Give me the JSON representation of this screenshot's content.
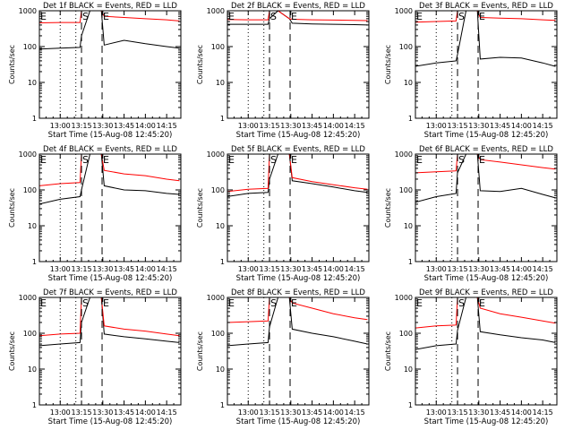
{
  "chart_data": [
    {
      "type": "line",
      "title": "Det 1f BLACK = Events, RED = LLD",
      "xlabel": "Start Time (15-Aug-08 12:45:20)",
      "ylabel": "Counts/sec",
      "yscale": "log",
      "ylim": [
        1,
        1000
      ],
      "x_ticks": [
        "13:00",
        "13:15",
        "13:30",
        "13:45",
        "14:00",
        "14:15"
      ],
      "y_ticks": [
        "1",
        "10",
        "100",
        "1000"
      ],
      "markers": [
        {
          "label": "E"
        },
        {
          "label": "S"
        },
        {
          "label": "E"
        }
      ],
      "series": [
        {
          "color": "#000000",
          "x": [
            "12:45",
            "13:00",
            "13:14",
            "13:15",
            "13:21",
            "13:29",
            "13:31",
            "13:45",
            "14:00",
            "14:15",
            "14:24"
          ],
          "y": [
            85,
            90,
            95,
            200,
            1000,
            1000,
            110,
            150,
            120,
            100,
            90
          ]
        },
        {
          "color": "#ff0000",
          "x": [
            "12:45",
            "13:00",
            "13:14",
            "13:15",
            "13:21",
            "13:29",
            "13:31",
            "13:45",
            "14:00",
            "14:15",
            "14:24"
          ],
          "y": [
            460,
            470,
            470,
            1000,
            1000,
            1000,
            700,
            650,
            600,
            560,
            520
          ]
        }
      ]
    },
    {
      "type": "line",
      "title": "Det 2f BLACK = Events, RED = LLD",
      "xlabel": "Start Time (15-Aug-08 12:45:20)",
      "ylabel": "Counts/sec",
      "yscale": "log",
      "ylim": [
        1,
        1000
      ],
      "x_ticks": [
        "13:00",
        "13:15",
        "13:30",
        "13:45",
        "14:00",
        "14:15"
      ],
      "y_ticks": [
        "1",
        "10",
        "100",
        "1000"
      ],
      "markers": [
        {
          "label": "E"
        },
        {
          "label": "S"
        },
        {
          "label": "E"
        }
      ],
      "series": [
        {
          "color": "#000000",
          "x": [
            "12:45",
            "13:00",
            "13:14",
            "13:15",
            "13:21",
            "13:29",
            "13:31",
            "13:45",
            "14:00",
            "14:15",
            "14:24"
          ],
          "y": [
            420,
            420,
            420,
            600,
            1000,
            600,
            450,
            430,
            420,
            410,
            400
          ]
        },
        {
          "color": "#ff0000",
          "x": [
            "12:45",
            "13:00",
            "13:14",
            "13:15",
            "13:21",
            "13:29",
            "13:31",
            "13:45",
            "14:00",
            "14:15",
            "14:24"
          ],
          "y": [
            570,
            560,
            560,
            1000,
            1000,
            600,
            580,
            560,
            550,
            540,
            530
          ]
        }
      ]
    },
    {
      "type": "line",
      "title": "Det 3f BLACK = Events, RED = LLD",
      "xlabel": "Start Time (15-Aug-08 12:45:20)",
      "ylabel": "Counts/sec",
      "yscale": "log",
      "ylim": [
        1,
        1000
      ],
      "x_ticks": [
        "13:00",
        "13:15",
        "13:30",
        "13:45",
        "14:00",
        "14:15"
      ],
      "y_ticks": [
        "1",
        "10",
        "100",
        "1000"
      ],
      "markers": [
        {
          "label": "E"
        },
        {
          "label": "S"
        },
        {
          "label": "E"
        }
      ],
      "series": [
        {
          "color": "#000000",
          "x": [
            "12:45",
            "13:00",
            "13:14",
            "13:15",
            "13:21",
            "13:29",
            "13:31",
            "13:45",
            "14:00",
            "14:15",
            "14:24"
          ],
          "y": [
            28,
            35,
            40,
            60,
            1000,
            1000,
            45,
            50,
            48,
            35,
            28
          ]
        },
        {
          "color": "#ff0000",
          "x": [
            "12:45",
            "13:00",
            "13:14",
            "13:15",
            "13:21",
            "13:29",
            "13:31",
            "13:45",
            "14:00",
            "14:15",
            "14:24"
          ],
          "y": [
            480,
            500,
            520,
            1000,
            1000,
            1000,
            650,
            620,
            600,
            560,
            540
          ]
        }
      ]
    },
    {
      "type": "line",
      "title": "Det 4f BLACK = Events, RED = LLD",
      "xlabel": "Start Time (15-Aug-08 12:45:20)",
      "ylabel": "Counts/sec",
      "yscale": "log",
      "ylim": [
        1,
        1000
      ],
      "x_ticks": [
        "13:00",
        "13:15",
        "13:30",
        "13:45",
        "14:00",
        "14:15"
      ],
      "y_ticks": [
        "1",
        "10",
        "100",
        "1000"
      ],
      "markers": [
        {
          "label": "E"
        },
        {
          "label": "S"
        },
        {
          "label": "E"
        }
      ],
      "series": [
        {
          "color": "#000000",
          "x": [
            "12:45",
            "13:00",
            "13:14",
            "13:15",
            "13:21",
            "13:29",
            "13:31",
            "13:45",
            "14:00",
            "14:15",
            "14:24"
          ],
          "y": [
            40,
            55,
            65,
            100,
            1000,
            1000,
            130,
            100,
            95,
            80,
            75
          ]
        },
        {
          "color": "#ff0000",
          "x": [
            "12:45",
            "13:00",
            "13:14",
            "13:15",
            "13:21",
            "13:29",
            "13:31",
            "13:45",
            "14:00",
            "14:15",
            "14:24"
          ],
          "y": [
            130,
            150,
            160,
            1000,
            1000,
            1000,
            350,
            280,
            250,
            200,
            180
          ]
        }
      ]
    },
    {
      "type": "line",
      "title": "Det 5f BLACK = Events, RED = LLD",
      "xlabel": "Start Time (15-Aug-08 12:45:20)",
      "ylabel": "Counts/sec",
      "yscale": "log",
      "ylim": [
        1,
        1000
      ],
      "x_ticks": [
        "13:00",
        "13:15",
        "13:30",
        "13:45",
        "14:00",
        "14:15"
      ],
      "y_ticks": [
        "1",
        "10",
        "100",
        "1000"
      ],
      "markers": [
        {
          "label": "E"
        },
        {
          "label": "S"
        },
        {
          "label": "E"
        }
      ],
      "series": [
        {
          "color": "#000000",
          "x": [
            "12:45",
            "13:00",
            "13:14",
            "13:15",
            "13:21",
            "13:29",
            "13:31",
            "13:45",
            "14:00",
            "14:15",
            "14:24"
          ],
          "y": [
            65,
            80,
            85,
            200,
            1000,
            1000,
            180,
            150,
            120,
            95,
            85
          ]
        },
        {
          "color": "#ff0000",
          "x": [
            "12:45",
            "13:00",
            "13:14",
            "13:15",
            "13:21",
            "13:29",
            "13:31",
            "13:45",
            "14:00",
            "14:15",
            "14:24"
          ],
          "y": [
            90,
            105,
            110,
            1000,
            1000,
            1000,
            220,
            170,
            140,
            115,
            105
          ]
        }
      ]
    },
    {
      "type": "line",
      "title": "Det 6f BLACK = Events, RED = LLD",
      "xlabel": "Start Time (15-Aug-08 12:45:20)",
      "ylabel": "Counts/sec",
      "yscale": "log",
      "ylim": [
        1,
        1000
      ],
      "x_ticks": [
        "13:00",
        "13:15",
        "13:30",
        "13:45",
        "14:00",
        "14:15"
      ],
      "y_ticks": [
        "1",
        "10",
        "100",
        "1000"
      ],
      "markers": [
        {
          "label": "E"
        },
        {
          "label": "S"
        },
        {
          "label": "E"
        }
      ],
      "series": [
        {
          "color": "#000000",
          "x": [
            "12:45",
            "13:00",
            "13:14",
            "13:15",
            "13:21",
            "13:29",
            "13:31",
            "13:45",
            "14:00",
            "14:15",
            "14:24"
          ],
          "y": [
            45,
            65,
            80,
            300,
            1000,
            1000,
            95,
            90,
            110,
            75,
            60
          ]
        },
        {
          "color": "#ff0000",
          "x": [
            "12:45",
            "13:00",
            "13:14",
            "13:15",
            "13:21",
            "13:29",
            "13:31",
            "13:45",
            "14:00",
            "14:15",
            "14:24"
          ],
          "y": [
            300,
            320,
            340,
            1000,
            1000,
            1000,
            700,
            600,
            500,
            420,
            380
          ]
        }
      ]
    },
    {
      "type": "line",
      "title": "Det 7f BLACK = Events, RED = LLD",
      "xlabel": "Start Time (15-Aug-08 12:45:20)",
      "ylabel": "Counts/sec",
      "yscale": "log",
      "ylim": [
        1,
        1000
      ],
      "x_ticks": [
        "13:00",
        "13:15",
        "13:30",
        "13:45",
        "14:00",
        "14:15"
      ],
      "y_ticks": [
        "1",
        "10",
        "100",
        "1000"
      ],
      "markers": [
        {
          "label": "E"
        },
        {
          "label": "S"
        },
        {
          "label": "E"
        }
      ],
      "series": [
        {
          "color": "#000000",
          "x": [
            "12:45",
            "13:00",
            "13:14",
            "13:15",
            "13:21",
            "13:29",
            "13:31",
            "13:45",
            "14:00",
            "14:15",
            "14:24"
          ],
          "y": [
            45,
            50,
            55,
            200,
            1000,
            1000,
            95,
            80,
            70,
            60,
            55
          ]
        },
        {
          "color": "#ff0000",
          "x": [
            "12:45",
            "13:00",
            "13:14",
            "13:15",
            "13:21",
            "13:29",
            "13:31",
            "13:45",
            "14:00",
            "14:15",
            "14:24"
          ],
          "y": [
            85,
            95,
            100,
            1000,
            1000,
            1000,
            160,
            130,
            115,
            95,
            85
          ]
        }
      ]
    },
    {
      "type": "line",
      "title": "Det 8f BLACK = Events, RED = LLD",
      "xlabel": "Start Time (15-Aug-08 12:45:20)",
      "ylabel": "Counts/sec",
      "yscale": "log",
      "ylim": [
        1,
        1000
      ],
      "x_ticks": [
        "13:00",
        "13:15",
        "13:30",
        "13:45",
        "14:00",
        "14:15"
      ],
      "y_ticks": [
        "1",
        "10",
        "100",
        "1000"
      ],
      "markers": [
        {
          "label": "E"
        },
        {
          "label": "S"
        },
        {
          "label": "E"
        }
      ],
      "series": [
        {
          "color": "#000000",
          "x": [
            "12:45",
            "13:00",
            "13:14",
            "13:15",
            "13:21",
            "13:29",
            "13:31",
            "13:45",
            "14:00",
            "14:15",
            "14:24"
          ],
          "y": [
            45,
            50,
            55,
            150,
            1000,
            1000,
            130,
            100,
            80,
            60,
            50
          ]
        },
        {
          "color": "#ff0000",
          "x": [
            "12:45",
            "13:00",
            "13:14",
            "13:15",
            "13:21",
            "13:29",
            "13:31",
            "13:45",
            "14:00",
            "14:15",
            "14:24"
          ],
          "y": [
            200,
            210,
            220,
            1000,
            1000,
            1000,
            700,
            500,
            350,
            270,
            240
          ]
        }
      ]
    },
    {
      "type": "line",
      "title": "Det 9f BLACK = Events, RED = LLD",
      "xlabel": "Start Time (15-Aug-08 12:45:20)",
      "ylabel": "Counts/sec",
      "yscale": "log",
      "ylim": [
        1,
        1000
      ],
      "x_ticks": [
        "13:00",
        "13:15",
        "13:30",
        "13:45",
        "14:00",
        "14:15"
      ],
      "y_ticks": [
        "1",
        "10",
        "100",
        "1000"
      ],
      "markers": [
        {
          "label": "E"
        },
        {
          "label": "S"
        },
        {
          "label": "E"
        }
      ],
      "series": [
        {
          "color": "#000000",
          "x": [
            "12:45",
            "13:00",
            "13:14",
            "13:15",
            "13:21",
            "13:29",
            "13:31",
            "13:45",
            "14:00",
            "14:15",
            "14:24"
          ],
          "y": [
            35,
            45,
            50,
            120,
            1000,
            1000,
            110,
            90,
            75,
            65,
            55
          ]
        },
        {
          "color": "#ff0000",
          "x": [
            "12:45",
            "13:00",
            "13:14",
            "13:15",
            "13:21",
            "13:29",
            "13:31",
            "13:45",
            "14:00",
            "14:15",
            "14:24"
          ],
          "y": [
            140,
            160,
            170,
            1000,
            1000,
            1000,
            500,
            350,
            280,
            220,
            190
          ]
        }
      ]
    }
  ]
}
